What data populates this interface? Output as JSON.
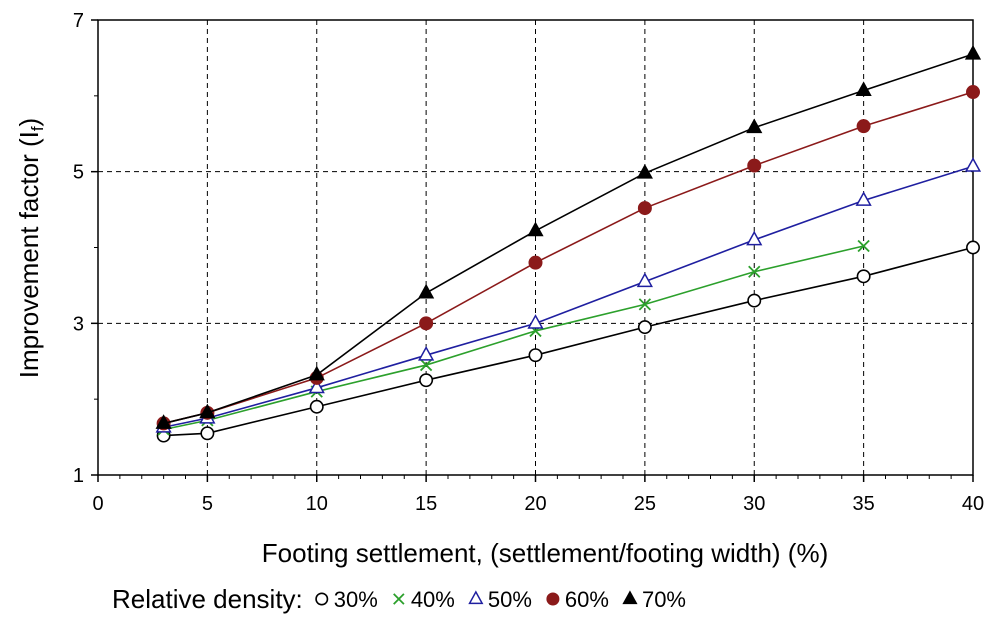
{
  "chart_data": {
    "type": "line",
    "title": "",
    "xlabel": "Footing settlement, (settlement/footing width) (%)",
    "ylabel": "Improvement factor (I",
    "ylabel_sub": "f",
    "ylabel_close": ")",
    "xlim": [
      0,
      40
    ],
    "ylim": [
      1,
      7
    ],
    "x_ticks": [
      0,
      5,
      10,
      15,
      20,
      25,
      30,
      35,
      40
    ],
    "y_ticks": [
      1,
      3,
      5,
      7
    ],
    "grid": true,
    "legend": {
      "title": "Relative density:",
      "placement": "bottom"
    },
    "series": [
      {
        "name": "30%",
        "marker": "circle-open",
        "color": "#000000",
        "x": [
          3,
          5,
          10,
          15,
          20,
          25,
          30,
          35,
          40
        ],
        "y": [
          1.52,
          1.55,
          1.9,
          2.25,
          2.58,
          2.95,
          3.3,
          3.62,
          4.0
        ]
      },
      {
        "name": "40%",
        "marker": "x",
        "color": "#2ca02c",
        "x": [
          3,
          5,
          10,
          15,
          20,
          25,
          30,
          35
        ],
        "y": [
          1.6,
          1.72,
          2.1,
          2.45,
          2.9,
          3.25,
          3.68,
          4.02
        ]
      },
      {
        "name": "50%",
        "marker": "triangle-open",
        "color": "#1f1fa0",
        "x": [
          3,
          5,
          10,
          15,
          20,
          25,
          30,
          35,
          40
        ],
        "y": [
          1.63,
          1.75,
          2.15,
          2.58,
          3.0,
          3.55,
          4.1,
          4.62,
          5.07
        ]
      },
      {
        "name": "60%",
        "marker": "circle-filled",
        "color": "#8b1a1a",
        "x": [
          3,
          5,
          10,
          15,
          20,
          25,
          30,
          35,
          40
        ],
        "y": [
          1.68,
          1.82,
          2.28,
          3.0,
          3.8,
          4.52,
          5.08,
          5.6,
          6.05
        ]
      },
      {
        "name": "70%",
        "marker": "triangle-filled",
        "color": "#000000",
        "x": [
          3,
          5,
          10,
          15,
          20,
          25,
          30,
          35,
          40
        ],
        "y": [
          1.68,
          1.82,
          2.32,
          3.4,
          4.22,
          4.98,
          5.58,
          6.07,
          6.55
        ]
      }
    ]
  }
}
